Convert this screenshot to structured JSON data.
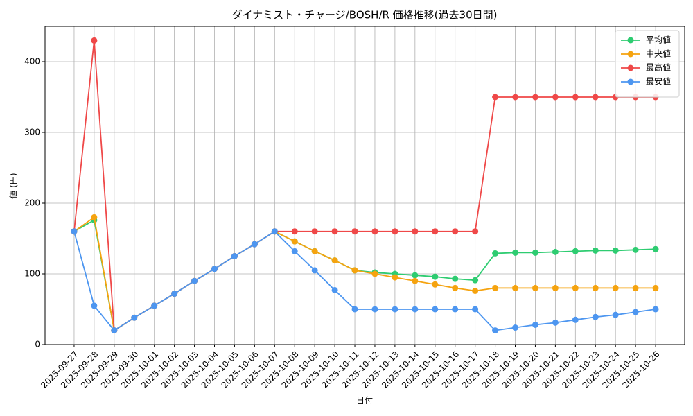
{
  "chart_data": {
    "type": "line",
    "title": "ダイナミスト・チャージ/BOSH/R 価格推移(過去30日間)",
    "x_label": "日付",
    "y_label": "値 (円)",
    "categories": [
      "2025-09-27",
      "2025-09-28",
      "2025-09-29",
      "2025-09-30",
      "2025-10-01",
      "2025-10-02",
      "2025-10-03",
      "2025-10-04",
      "2025-10-05",
      "2025-10-06",
      "2025-10-07",
      "2025-10-08",
      "2025-10-09",
      "2025-10-10",
      "2025-10-11",
      "2025-10-12",
      "2025-10-13",
      "2025-10-14",
      "2025-10-15",
      "2025-10-16",
      "2025-10-17",
      "2025-10-18",
      "2025-10-19",
      "2025-10-20",
      "2025-10-21",
      "2025-10-22",
      "2025-10-23",
      "2025-10-24",
      "2025-10-25",
      "2025-10-26"
    ],
    "series": [
      {
        "name": "平均値",
        "color": "#2ecc71",
        "values": [
          160,
          176,
          20,
          38,
          55,
          72,
          90,
          107,
          125,
          142,
          160,
          146,
          132,
          119,
          105,
          102,
          100,
          98,
          96,
          93,
          91,
          129,
          130,
          130,
          131,
          132,
          133,
          133,
          134,
          135
        ]
      },
      {
        "name": "中央値",
        "color": "#f5a30f",
        "values": [
          160,
          180,
          20,
          38,
          55,
          72,
          90,
          107,
          125,
          142,
          160,
          146,
          132,
          119,
          105,
          100,
          95,
          90,
          85,
          80,
          76,
          80,
          80,
          80,
          80,
          80,
          80,
          80,
          80,
          80
        ]
      },
      {
        "name": "最高値",
        "color": "#ef4848",
        "values": [
          160,
          430,
          20,
          38,
          55,
          72,
          90,
          107,
          125,
          142,
          160,
          160,
          160,
          160,
          160,
          160,
          160,
          160,
          160,
          160,
          160,
          350,
          350,
          350,
          350,
          350,
          350,
          350,
          350,
          350
        ]
      },
      {
        "name": "最安値",
        "color": "#4d96f0",
        "values": [
          160,
          55,
          20,
          38,
          55,
          72,
          90,
          107,
          125,
          142,
          160,
          132,
          105,
          77,
          50,
          50,
          50,
          50,
          50,
          50,
          50,
          20,
          24,
          28,
          31,
          35,
          39,
          42,
          46,
          50
        ]
      }
    ],
    "ylim": [
      0,
      450
    ],
    "yticks": [
      0,
      100,
      200,
      300,
      400
    ],
    "grid": true,
    "legend": "upper right"
  }
}
